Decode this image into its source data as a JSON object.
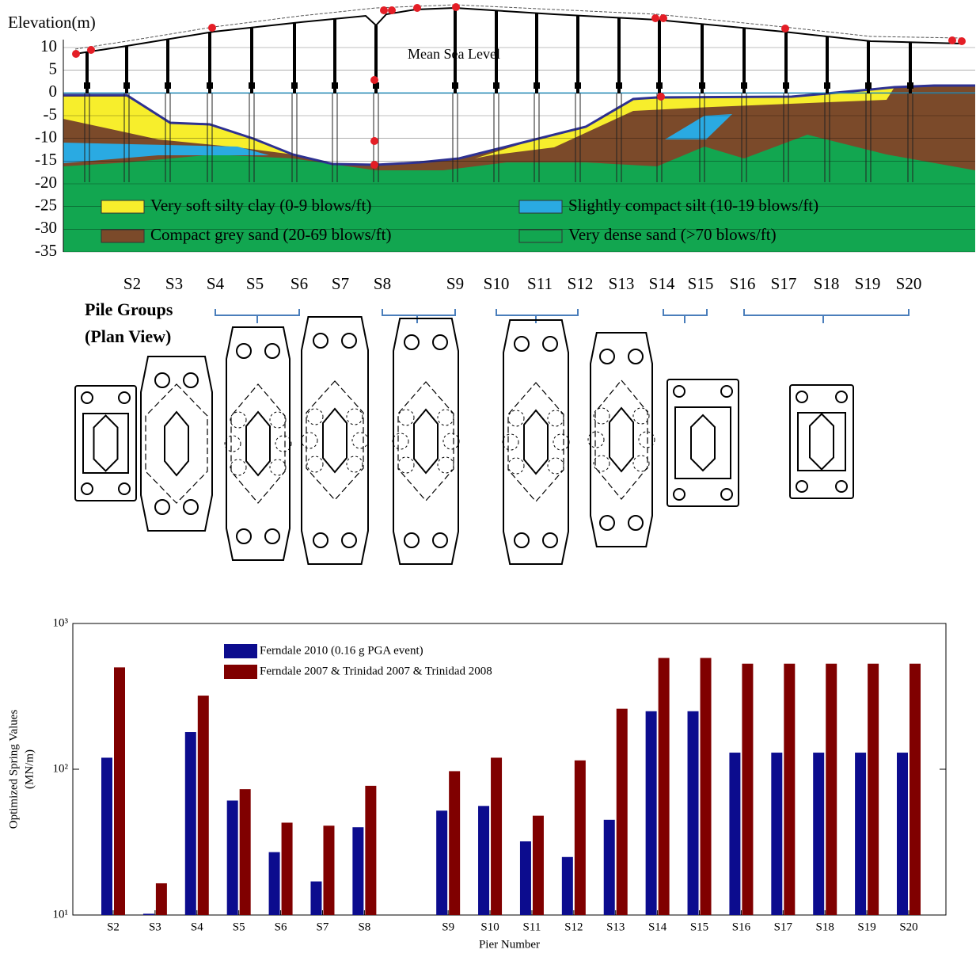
{
  "profile": {
    "y_label": "Elevation(m)",
    "ylim": [
      -35,
      10
    ],
    "yticks": [
      10,
      5,
      0,
      -5,
      -10,
      -15,
      -20,
      -25,
      -30,
      -35
    ],
    "sea_level": "Mean Sea Level",
    "legend": [
      "Very soft silty clay (0-9 blows/ft)",
      "Slightly compact silt (10-19 blows/ft)",
      "Compact grey sand (20-69 blows/ft)",
      "Very dense sand (>70 blows/ft)"
    ],
    "piers": [
      "S2",
      "S3",
      "S4",
      "S5",
      "S6",
      "S7",
      "S8",
      "S9",
      "S10",
      "S11",
      "S12",
      "S13",
      "S14",
      "S15",
      "S16",
      "S17",
      "S18",
      "S19",
      "S20"
    ]
  },
  "plan": {
    "title": [
      "Pile Groups",
      "(Plan View)"
    ]
  },
  "chart_data": {
    "type": "bar",
    "log_scale": true,
    "y_label": [
      "Optimized Spring Values",
      "(MN/m)"
    ],
    "x_label": "Pier Number",
    "categories": [
      "S2",
      "S3",
      "S4",
      "S5",
      "S6",
      "S7",
      "S8",
      null,
      "S9",
      "S10",
      "S11",
      "S12",
      "S13",
      "S14",
      "S15",
      "S16",
      "S17",
      "S18",
      "S19",
      "S20"
    ],
    "ylim": [
      10,
      1000
    ],
    "yticks": [
      {
        "value": 10,
        "label": "10¹"
      },
      {
        "value": 100,
        "label": "10²"
      },
      {
        "value": 1000,
        "label": "10³"
      }
    ],
    "series": [
      {
        "name": "Ferndale 2010 (0.16 g PGA event)",
        "color": "#0c0c8e",
        "values": [
          120,
          10.2,
          180,
          61,
          27,
          17,
          40,
          null,
          52,
          56,
          32,
          25,
          45,
          250,
          250,
          130,
          130,
          130,
          130,
          130
        ]
      },
      {
        "name": "Ferndale 2007 & Trinidad 2007 & Trinidad 2008",
        "color": "#800000",
        "values": [
          500,
          16.5,
          320,
          73,
          43,
          41,
          77,
          null,
          97,
          120,
          48,
          115,
          260,
          580,
          580,
          530,
          530,
          530,
          530,
          530
        ]
      }
    ]
  }
}
